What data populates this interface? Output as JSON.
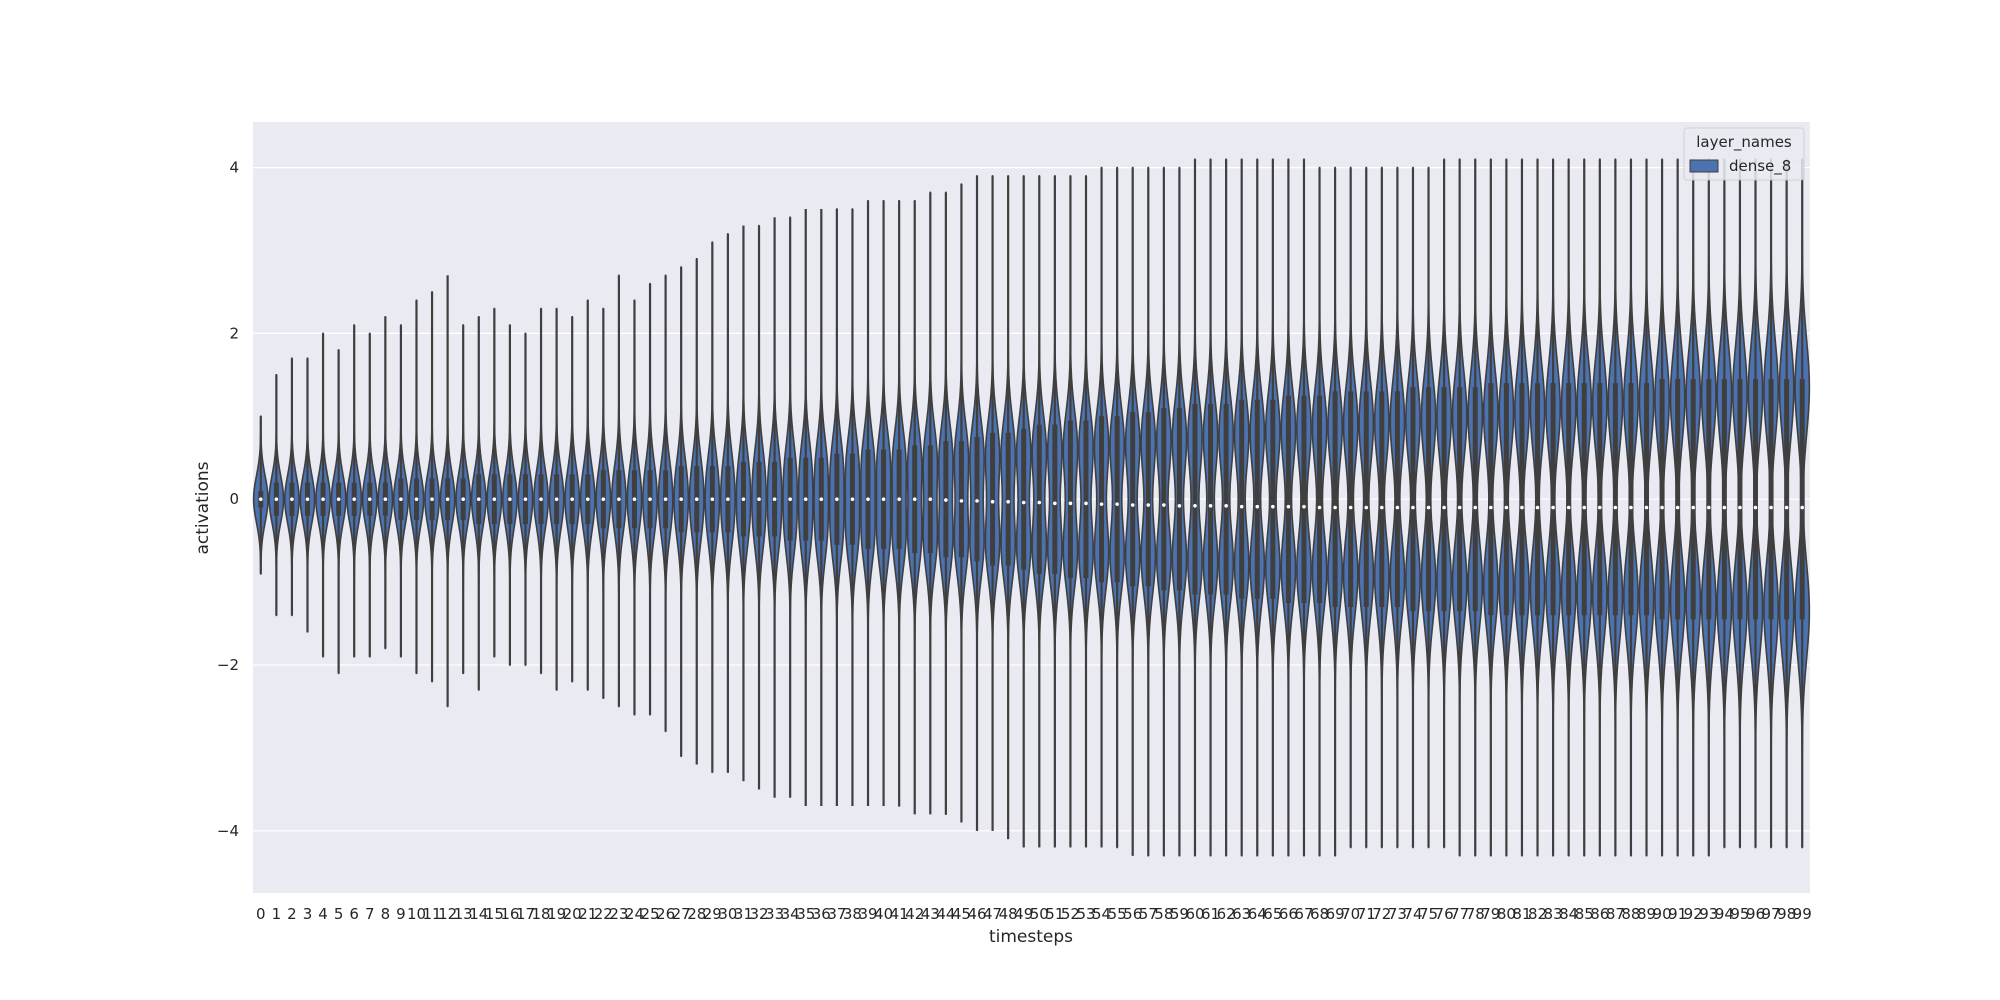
{
  "chart_data": {
    "type": "violin",
    "xlabel": "timesteps",
    "ylabel": "activations",
    "ylim": [
      -4.75,
      4.55
    ],
    "yticks": [
      -4,
      -2,
      0,
      2,
      4
    ],
    "ytick_labels": [
      "−4",
      "−2",
      "0",
      "2",
      "4"
    ],
    "grid": true,
    "legend": {
      "title": "layer_names",
      "position": "top-right",
      "entries": [
        {
          "name": "dense_8",
          "color": "#4c72b0"
        }
      ]
    },
    "colors": {
      "violin": "#4c72b0",
      "inner": "#3f3f3f",
      "background": "#eaeaf2",
      "grid": "#ffffff",
      "median": "#ffffff"
    },
    "categories": [
      "0",
      "1",
      "2",
      "3",
      "4",
      "5",
      "6",
      "7",
      "8",
      "9",
      "10",
      "11",
      "12",
      "13",
      "14",
      "15",
      "16",
      "17",
      "18",
      "19",
      "20",
      "21",
      "22",
      "23",
      "24",
      "25",
      "26",
      "27",
      "28",
      "29",
      "30",
      "31",
      "32",
      "33",
      "34",
      "35",
      "36",
      "37",
      "38",
      "39",
      "40",
      "41",
      "42",
      "43",
      "44",
      "45",
      "46",
      "47",
      "48",
      "49",
      "50",
      "51",
      "52",
      "53",
      "54",
      "55",
      "56",
      "57",
      "58",
      "59",
      "60",
      "61",
      "62",
      "63",
      "64",
      "65",
      "66",
      "67",
      "68",
      "69",
      "70",
      "71",
      "72",
      "73",
      "74",
      "75",
      "76",
      "77",
      "78",
      "79",
      "80",
      "81",
      "82",
      "83",
      "84",
      "85",
      "86",
      "87",
      "88",
      "89",
      "90",
      "91",
      "92",
      "93",
      "94",
      "95",
      "96",
      "97",
      "98",
      "99"
    ],
    "series": [
      {
        "name": "dense_8",
        "ymax": [
          1.0,
          1.5,
          1.7,
          1.7,
          2.0,
          1.8,
          2.1,
          2.0,
          2.2,
          2.1,
          2.4,
          2.5,
          2.7,
          2.1,
          2.2,
          2.3,
          2.1,
          2.0,
          2.3,
          2.3,
          2.2,
          2.4,
          2.3,
          2.7,
          2.4,
          2.6,
          2.7,
          2.8,
          2.9,
          3.1,
          3.2,
          3.3,
          3.3,
          3.4,
          3.4,
          3.5,
          3.5,
          3.5,
          3.5,
          3.6,
          3.6,
          3.6,
          3.6,
          3.7,
          3.7,
          3.8,
          3.9,
          3.9,
          3.9,
          3.9,
          3.9,
          3.9,
          3.9,
          3.9,
          4.0,
          4.0,
          4.0,
          4.0,
          4.0,
          4.0,
          4.1,
          4.1,
          4.1,
          4.1,
          4.1,
          4.1,
          4.1,
          4.1,
          4.0,
          4.0,
          4.0,
          4.0,
          4.0,
          4.0,
          4.0,
          4.0,
          4.1,
          4.1,
          4.1,
          4.1,
          4.1,
          4.1,
          4.1,
          4.1,
          4.1,
          4.1,
          4.1,
          4.1,
          4.1,
          4.1,
          4.1,
          4.1,
          4.1,
          4.1,
          4.1,
          4.1,
          4.1,
          4.1,
          4.1,
          4.1
        ],
        "ymin": [
          -0.9,
          -1.4,
          -1.4,
          -1.6,
          -1.9,
          -2.1,
          -1.9,
          -1.9,
          -1.8,
          -1.9,
          -2.1,
          -2.2,
          -2.5,
          -2.1,
          -2.3,
          -1.9,
          -2.0,
          -2.0,
          -2.1,
          -2.3,
          -2.2,
          -2.3,
          -2.4,
          -2.5,
          -2.6,
          -2.6,
          -2.8,
          -3.1,
          -3.2,
          -3.3,
          -3.3,
          -3.4,
          -3.5,
          -3.6,
          -3.6,
          -3.7,
          -3.7,
          -3.7,
          -3.7,
          -3.7,
          -3.7,
          -3.7,
          -3.8,
          -3.8,
          -3.8,
          -3.9,
          -4.0,
          -4.0,
          -4.1,
          -4.2,
          -4.2,
          -4.2,
          -4.2,
          -4.2,
          -4.2,
          -4.2,
          -4.3,
          -4.3,
          -4.3,
          -4.3,
          -4.3,
          -4.3,
          -4.3,
          -4.3,
          -4.3,
          -4.3,
          -4.3,
          -4.3,
          -4.3,
          -4.3,
          -4.2,
          -4.2,
          -4.2,
          -4.2,
          -4.2,
          -4.2,
          -4.2,
          -4.3,
          -4.3,
          -4.3,
          -4.3,
          -4.3,
          -4.3,
          -4.3,
          -4.3,
          -4.3,
          -4.3,
          -4.3,
          -4.3,
          -4.3,
          -4.3,
          -4.3,
          -4.3,
          -4.3,
          -4.2,
          -4.2,
          -4.2,
          -4.2,
          -4.2,
          -4.2
        ],
        "median": [
          0.0,
          0.0,
          0.0,
          0.0,
          0.0,
          0.0,
          0.0,
          0.0,
          0.0,
          0.0,
          0.0,
          0.0,
          0.0,
          0.0,
          0.0,
          0.0,
          0.0,
          0.0,
          0.0,
          0.0,
          0.0,
          0.0,
          0.0,
          0.0,
          0.0,
          0.0,
          0.0,
          0.0,
          0.0,
          0.0,
          0.0,
          0.0,
          0.0,
          0.0,
          0.0,
          0.0,
          0.0,
          0.0,
          0.0,
          0.0,
          0.0,
          0.0,
          0.0,
          0.0,
          -0.01,
          -0.02,
          -0.02,
          -0.03,
          -0.03,
          -0.04,
          -0.04,
          -0.05,
          -0.05,
          -0.05,
          -0.06,
          -0.06,
          -0.07,
          -0.07,
          -0.07,
          -0.08,
          -0.08,
          -0.08,
          -0.08,
          -0.09,
          -0.09,
          -0.09,
          -0.09,
          -0.09,
          -0.1,
          -0.1,
          -0.1,
          -0.1,
          -0.1,
          -0.1,
          -0.1,
          -0.1,
          -0.1,
          -0.1,
          -0.1,
          -0.1,
          -0.1,
          -0.1,
          -0.1,
          -0.1,
          -0.1,
          -0.1,
          -0.1,
          -0.1,
          -0.1,
          -0.1,
          -0.1,
          -0.1,
          -0.1,
          -0.1,
          -0.1,
          -0.1,
          -0.1,
          -0.1,
          -0.1,
          -0.1
        ],
        "q3": [
          0.1,
          0.2,
          0.2,
          0.2,
          0.2,
          0.2,
          0.2,
          0.2,
          0.2,
          0.25,
          0.25,
          0.25,
          0.25,
          0.25,
          0.3,
          0.3,
          0.3,
          0.3,
          0.3,
          0.3,
          0.3,
          0.3,
          0.35,
          0.35,
          0.35,
          0.35,
          0.35,
          0.4,
          0.4,
          0.4,
          0.4,
          0.45,
          0.45,
          0.45,
          0.5,
          0.5,
          0.5,
          0.55,
          0.55,
          0.6,
          0.6,
          0.6,
          0.65,
          0.65,
          0.7,
          0.7,
          0.75,
          0.8,
          0.8,
          0.85,
          0.9,
          0.9,
          0.95,
          0.95,
          1.0,
          1.0,
          1.05,
          1.05,
          1.1,
          1.1,
          1.15,
          1.15,
          1.15,
          1.2,
          1.2,
          1.2,
          1.25,
          1.25,
          1.25,
          1.3,
          1.3,
          1.3,
          1.3,
          1.3,
          1.35,
          1.35,
          1.35,
          1.35,
          1.35,
          1.4,
          1.4,
          1.4,
          1.4,
          1.4,
          1.4,
          1.4,
          1.4,
          1.4,
          1.4,
          1.4,
          1.45,
          1.45,
          1.45,
          1.45,
          1.45,
          1.45,
          1.45,
          1.45,
          1.45,
          1.45
        ],
        "q1": [
          -0.1,
          -0.2,
          -0.2,
          -0.2,
          -0.2,
          -0.2,
          -0.2,
          -0.2,
          -0.2,
          -0.25,
          -0.25,
          -0.25,
          -0.25,
          -0.25,
          -0.3,
          -0.3,
          -0.3,
          -0.3,
          -0.3,
          -0.3,
          -0.3,
          -0.3,
          -0.35,
          -0.35,
          -0.35,
          -0.35,
          -0.35,
          -0.4,
          -0.4,
          -0.4,
          -0.4,
          -0.45,
          -0.45,
          -0.45,
          -0.5,
          -0.5,
          -0.5,
          -0.55,
          -0.55,
          -0.6,
          -0.6,
          -0.6,
          -0.65,
          -0.65,
          -0.7,
          -0.7,
          -0.75,
          -0.8,
          -0.8,
          -0.85,
          -0.9,
          -0.9,
          -0.95,
          -0.95,
          -1.0,
          -1.0,
          -1.05,
          -1.05,
          -1.1,
          -1.1,
          -1.15,
          -1.15,
          -1.15,
          -1.2,
          -1.2,
          -1.2,
          -1.25,
          -1.25,
          -1.25,
          -1.3,
          -1.3,
          -1.3,
          -1.3,
          -1.3,
          -1.35,
          -1.35,
          -1.35,
          -1.35,
          -1.35,
          -1.4,
          -1.4,
          -1.4,
          -1.4,
          -1.4,
          -1.4,
          -1.4,
          -1.4,
          -1.4,
          -1.4,
          -1.4,
          -1.45,
          -1.45,
          -1.45,
          -1.45,
          -1.45,
          -1.45,
          -1.45,
          -1.45,
          -1.45,
          -1.45
        ]
      }
    ]
  }
}
